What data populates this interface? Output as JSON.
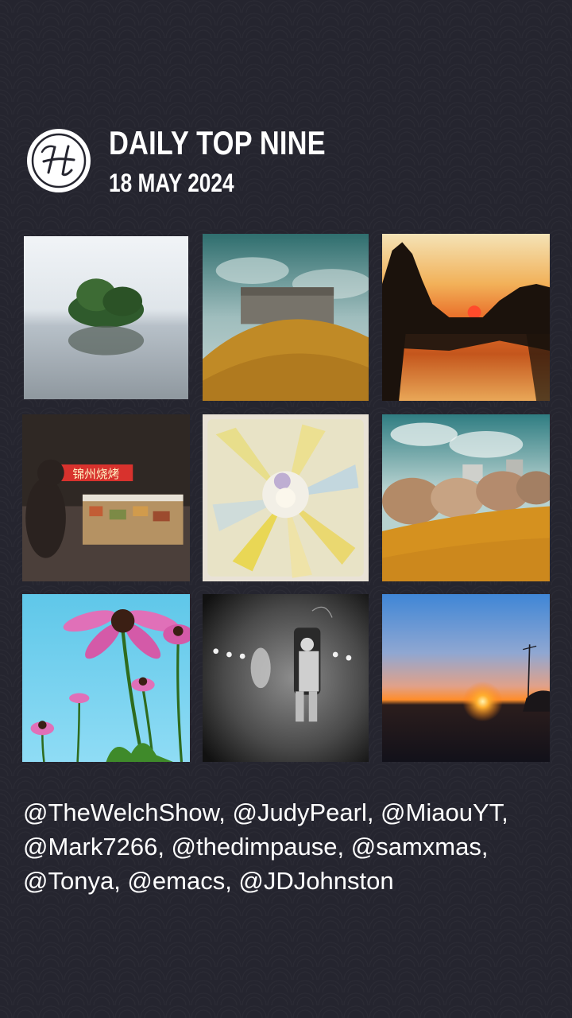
{
  "header": {
    "logo_icon": "circle-script-h-logo",
    "title": "DAILY TOP NINE",
    "date": "18 MAY 2024"
  },
  "photos": [
    {
      "subject": "misty-lake-island"
    },
    {
      "subject": "castle-on-hill"
    },
    {
      "subject": "sunset-river"
    },
    {
      "subject": "night-food-stall"
    },
    {
      "subject": "pastel-flower"
    },
    {
      "subject": "autumn-field"
    },
    {
      "subject": "pink-coneflowers"
    },
    {
      "subject": "bw-figure-in-chair"
    },
    {
      "subject": "sunrise-horizon"
    }
  ],
  "stall_sign": "锦州烧烤",
  "credits": "@TheWelchShow, @JudyPearl, @MiaouYT, @Mark7266, @thedimpause, @samxmas, @Tonya, @emacs, @JDJohnston",
  "colors": {
    "background": "#25252f",
    "text": "#ffffff"
  }
}
